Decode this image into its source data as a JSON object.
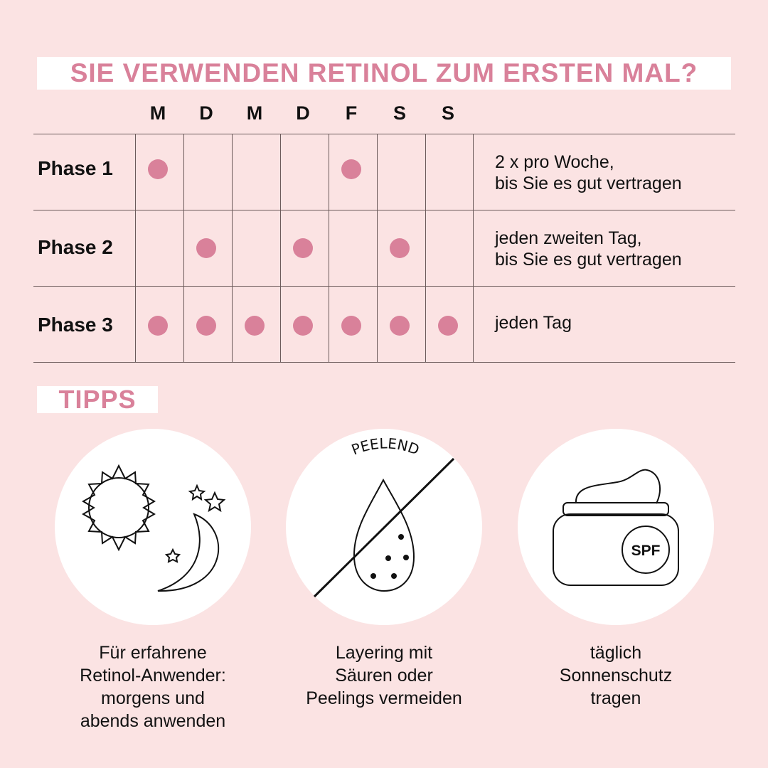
{
  "title": "SIE VERWENDEN RETINOL ZUM ERSTEN MAL?",
  "accent_color": "#d9819a",
  "background_color": "#fbe3e3",
  "days": [
    "M",
    "D",
    "M",
    "D",
    "F",
    "S",
    "S"
  ],
  "phases": [
    {
      "label": "Phase 1",
      "schedule": [
        true,
        false,
        false,
        false,
        true,
        false,
        false
      ],
      "note": [
        "2 x pro Woche,",
        "bis Sie es gut vertragen"
      ]
    },
    {
      "label": "Phase 2",
      "schedule": [
        false,
        true,
        false,
        true,
        false,
        true,
        false
      ],
      "note": [
        "jeden zweiten Tag,",
        "bis Sie es gut vertragen"
      ]
    },
    {
      "label": "Phase 3",
      "schedule": [
        true,
        true,
        true,
        true,
        true,
        true,
        true
      ],
      "note": [
        "jeden Tag"
      ]
    }
  ],
  "tips_heading": "TIPPS",
  "tips": [
    {
      "icon": "sun-moon-icon",
      "caption": [
        "Für erfahrene",
        "Retinol-Anwender:",
        "morgens und",
        "abends anwenden"
      ]
    },
    {
      "icon": "no-peeling-drop-icon",
      "icon_label": "PEELEND",
      "caption": [
        "Layering mit",
        "Säuren oder",
        "Peelings vermeiden"
      ]
    },
    {
      "icon": "spf-cream-jar-icon",
      "icon_label": "SPF",
      "caption": [
        "täglich",
        "Sonnenschutz",
        "tragen"
      ]
    }
  ]
}
